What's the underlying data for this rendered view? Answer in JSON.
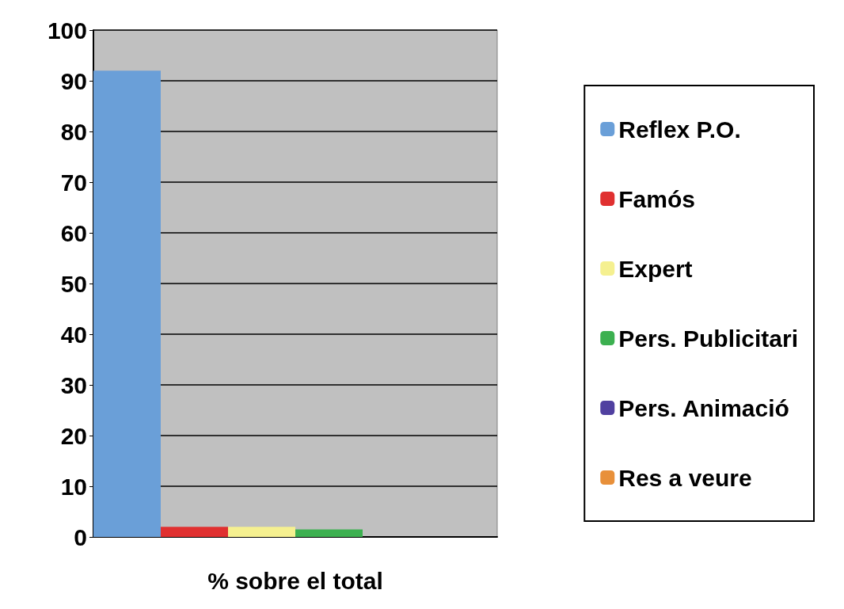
{
  "chart_data": {
    "type": "bar",
    "categories": [
      null,
      null,
      null,
      null,
      null,
      null
    ],
    "xlabel": "% sobre el total",
    "stacked": true,
    "series": [
      {
        "name": "Reflex P.O.",
        "color": "#6a9fd8",
        "values": [
          92,
          null,
          null,
          null,
          null,
          null
        ]
      },
      {
        "name": "Famós",
        "color": "#e03030",
        "values": [
          null,
          2,
          null,
          null,
          null,
          null
        ]
      },
      {
        "name": "Expert",
        "color": "#f5f090",
        "values": [
          null,
          null,
          2,
          null,
          null,
          null
        ]
      },
      {
        "name": "Pers. Publicitari",
        "color": "#3cb050",
        "values": [
          null,
          null,
          null,
          1.5,
          null,
          null
        ]
      },
      {
        "name": "Pers. Animació",
        "color": "#5040a0",
        "values": [
          null,
          null,
          null,
          null,
          0,
          null
        ]
      },
      {
        "name": "Res a veure",
        "color": "#e8903a",
        "values": [
          null,
          null,
          null,
          null,
          null,
          0
        ]
      }
    ],
    "ylim": [
      0,
      100
    ],
    "yticks": [
      0,
      10,
      20,
      30,
      40,
      50,
      60,
      70,
      80,
      90,
      100
    ],
    "grid": "y",
    "legend": "right"
  }
}
